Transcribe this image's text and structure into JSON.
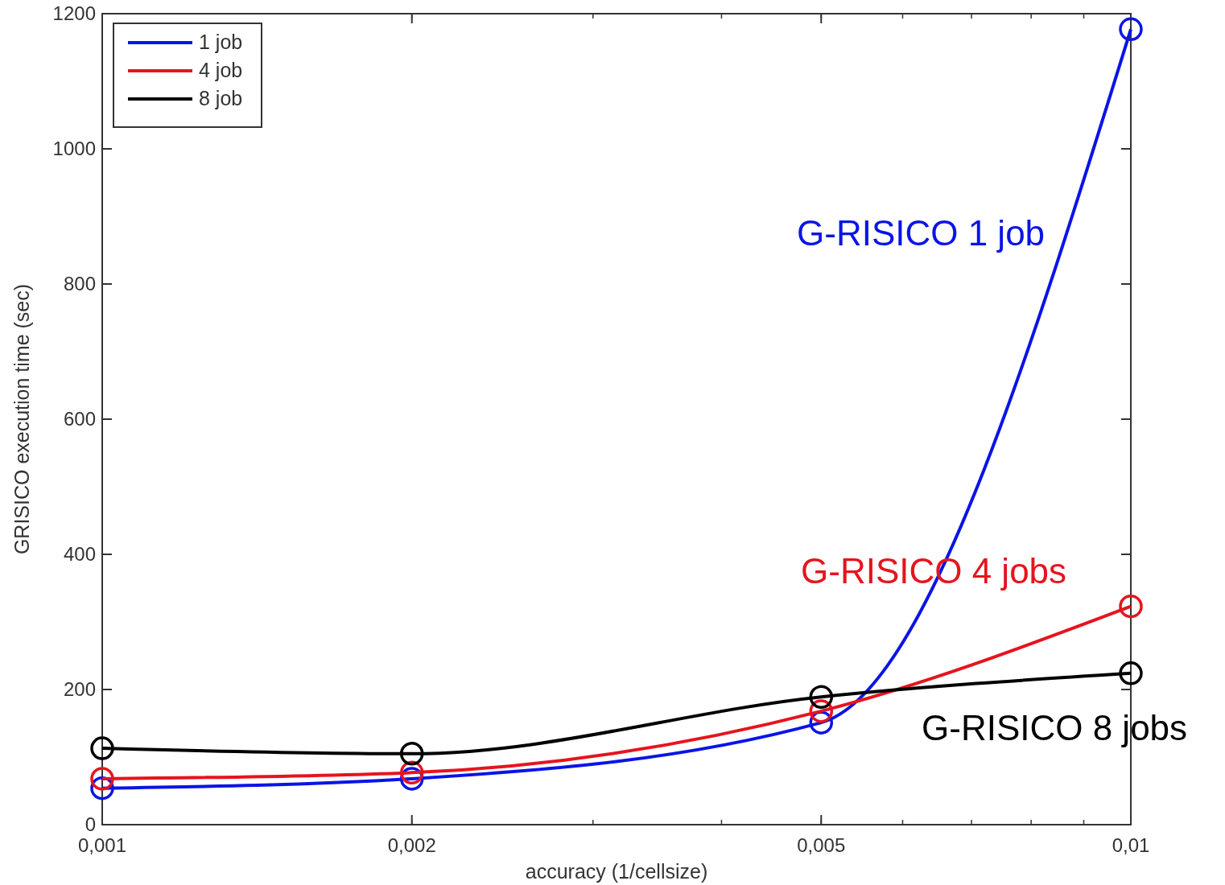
{
  "chart_data": {
    "type": "line",
    "xlabel": "accuracy (1/cellsize)",
    "ylabel": "GRISICO execution time (sec)",
    "x": [
      0.001,
      0.002,
      0.005,
      0.01
    ],
    "log": "x",
    "xlim": [
      0.001,
      0.01
    ],
    "xticks": [
      {
        "value": 0.001,
        "label": "0,001"
      },
      {
        "value": 0.002,
        "label": "0,002"
      },
      {
        "value": 0.005,
        "label": "0,005"
      },
      {
        "value": 0.01,
        "label": "0,01"
      }
    ],
    "ylim": [
      0,
      1200
    ],
    "yticks": [
      0,
      200,
      400,
      600,
      800,
      1000,
      1200
    ],
    "grid": false,
    "legend": "top left",
    "marker": "circle",
    "line_style": "solid",
    "series": [
      {
        "name": "1 job",
        "color": "#0a14e6",
        "values": [
          54,
          68,
          151,
          1177
        ]
      },
      {
        "name": "4 job",
        "color": "#e6141e",
        "values": [
          68,
          77,
          168,
          323
        ]
      },
      {
        "name": "8 job",
        "color": "#000000",
        "values": [
          113,
          105,
          189,
          224
        ]
      }
    ],
    "annotations": [
      "G-RISICO 1 job",
      "G-RISICO 4 jobs",
      "G-RISICO 8 jobs"
    ]
  }
}
